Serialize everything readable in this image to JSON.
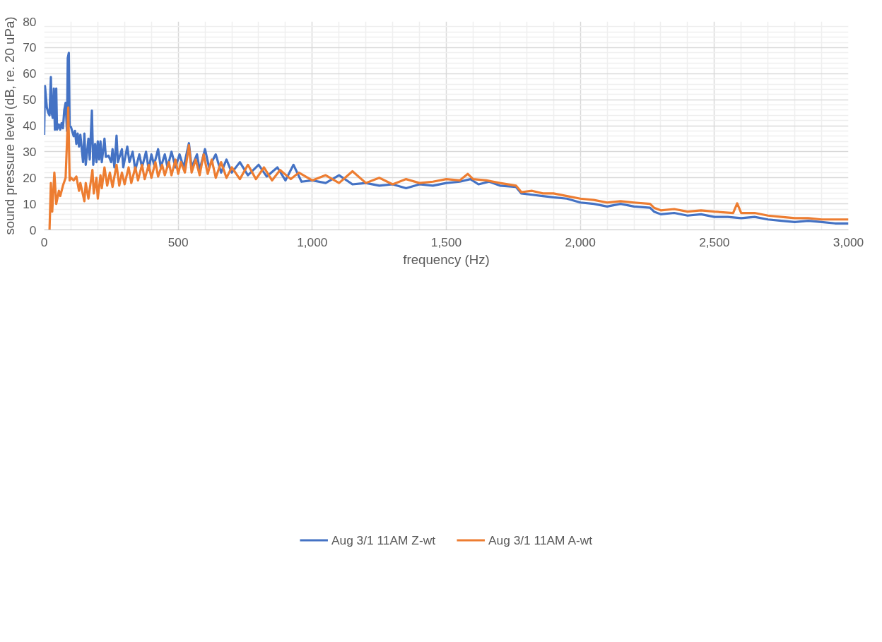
{
  "chart_data": {
    "type": "line",
    "xlabel": "frequency (Hz)",
    "ylabel": "sound pressure level (dB, re. 20 uPa)",
    "xlim": [
      0,
      3000
    ],
    "xticks": [
      {
        "value": 0,
        "label": "0"
      },
      {
        "value": 500,
        "label": "500"
      },
      {
        "value": 1000,
        "label": "1,000"
      },
      {
        "value": 1500,
        "label": "1,500"
      },
      {
        "value": 2000,
        "label": "2,000"
      },
      {
        "value": 2500,
        "label": "2,500"
      },
      {
        "value": 3000,
        "label": "3,000"
      }
    ],
    "ylim": [
      0,
      80
    ],
    "yticks": [
      0,
      10,
      20,
      30,
      40,
      50,
      60,
      70,
      80
    ],
    "grid": true,
    "legend": "bottom",
    "marker": "none",
    "line_style": "solid",
    "series": [
      {
        "name": "Aug 3/1 11AM Z-wt",
        "color": "#4472c4",
        "x": [
          0,
          3,
          10,
          15,
          20,
          25,
          28,
          32,
          36,
          40,
          45,
          48,
          55,
          60,
          65,
          70,
          75,
          80,
          85,
          88,
          92,
          95,
          100,
          110,
          115,
          120,
          125,
          130,
          135,
          145,
          150,
          155,
          165,
          170,
          178,
          183,
          190,
          195,
          200,
          205,
          210,
          215,
          225,
          230,
          240,
          250,
          255,
          262,
          270,
          275,
          290,
          295,
          310,
          318,
          330,
          340,
          355,
          365,
          380,
          390,
          400,
          410,
          425,
          435,
          450,
          460,
          475,
          490,
          505,
          520,
          540,
          550,
          570,
          580,
          600,
          615,
          640,
          660,
          680,
          700,
          730,
          760,
          800,
          830,
          870,
          900,
          930,
          960,
          1000,
          1050,
          1100,
          1150,
          1200,
          1250,
          1300,
          1350,
          1400,
          1450,
          1500,
          1550,
          1590,
          1620,
          1660,
          1700,
          1760,
          1780,
          1820,
          1860,
          1900,
          1950,
          2000,
          2050,
          2100,
          2150,
          2200,
          2260,
          2275,
          2300,
          2350,
          2400,
          2450,
          2500,
          2550,
          2600,
          2650,
          2700,
          2750,
          2800,
          2850,
          2900,
          2950,
          3000
        ],
        "values": [
          36.5,
          55.3,
          47,
          45,
          44,
          58.7,
          45,
          43,
          54.3,
          38.5,
          54.3,
          38.5,
          40.5,
          38.5,
          41,
          39,
          46,
          48.8,
          38,
          66,
          68,
          40,
          39.5,
          36,
          38,
          33,
          37,
          32,
          36.5,
          26,
          37,
          25,
          35,
          27,
          45.8,
          25,
          33,
          26,
          34,
          27,
          34,
          26,
          35,
          28,
          28.5,
          26,
          31,
          24,
          36.2,
          26,
          31,
          24,
          32,
          26,
          30,
          23,
          29,
          24,
          30,
          23,
          29,
          25,
          31,
          24,
          29,
          24,
          30,
          24,
          29,
          24,
          33.3,
          24,
          29,
          23,
          31,
          24,
          29,
          22,
          27,
          22,
          26,
          21,
          25,
          20.5,
          24,
          19,
          25,
          18.5,
          19,
          18,
          21,
          17.5,
          18,
          17,
          17.5,
          16,
          17.5,
          17,
          18,
          18.5,
          19.5,
          17.5,
          18.5,
          17,
          16.5,
          14,
          13.5,
          13,
          12.5,
          12,
          10.5,
          10,
          9,
          10,
          9,
          8.5,
          7,
          6,
          6.5,
          5.5,
          6,
          5,
          5,
          4.5,
          5,
          4,
          3.5,
          3,
          3.5,
          3,
          2.5,
          2.5
        ]
      },
      {
        "name": "Aug 3/1 11AM A-wt",
        "color": "#ed7d31",
        "x": [
          20,
          25,
          30,
          38,
          45,
          55,
          60,
          70,
          80,
          90,
          95,
          100,
          110,
          120,
          130,
          135,
          150,
          155,
          165,
          180,
          185,
          195,
          200,
          210,
          215,
          225,
          235,
          245,
          255,
          270,
          280,
          290,
          300,
          315,
          325,
          340,
          350,
          365,
          375,
          390,
          400,
          415,
          425,
          440,
          450,
          465,
          475,
          490,
          500,
          510,
          525,
          540,
          550,
          565,
          580,
          595,
          610,
          625,
          640,
          660,
          680,
          700,
          730,
          760,
          790,
          820,
          850,
          880,
          920,
          950,
          1000,
          1050,
          1100,
          1150,
          1200,
          1250,
          1300,
          1350,
          1400,
          1450,
          1500,
          1550,
          1580,
          1600,
          1650,
          1700,
          1760,
          1780,
          1820,
          1860,
          1900,
          1950,
          2000,
          2050,
          2100,
          2150,
          2200,
          2260,
          2275,
          2300,
          2350,
          2400,
          2450,
          2500,
          2570,
          2585,
          2600,
          2650,
          2700,
          2750,
          2800,
          2850,
          2900,
          2950,
          3000
        ],
        "values": [
          0,
          18,
          7,
          22,
          10,
          15,
          13,
          17,
          20,
          47,
          19,
          20,
          19,
          20.5,
          15,
          18,
          11,
          18,
          12,
          23,
          14,
          20,
          12,
          21,
          16,
          24,
          17,
          22,
          16.5,
          25,
          17,
          22,
          17.5,
          24,
          18,
          24,
          19,
          25,
          19.5,
          25,
          20,
          26,
          20.5,
          25,
          21,
          26,
          21,
          27,
          21.5,
          26,
          22,
          32.5,
          22,
          27,
          21,
          29,
          21.5,
          27,
          20,
          26,
          20,
          24,
          19.5,
          25,
          19.5,
          24,
          19,
          23,
          19.5,
          22,
          19,
          21,
          18,
          22.5,
          18,
          20,
          17.5,
          19.5,
          18,
          18.5,
          19.5,
          19,
          21.5,
          19.5,
          19,
          18,
          17,
          14.5,
          15,
          14,
          14,
          13,
          12,
          11.5,
          10.5,
          11,
          10.5,
          10,
          8.5,
          7.5,
          8,
          7,
          7.5,
          7,
          6.5,
          10.2,
          6.5,
          6.5,
          5.5,
          5,
          4.5,
          4.5,
          4,
          4,
          4
        ]
      }
    ]
  }
}
